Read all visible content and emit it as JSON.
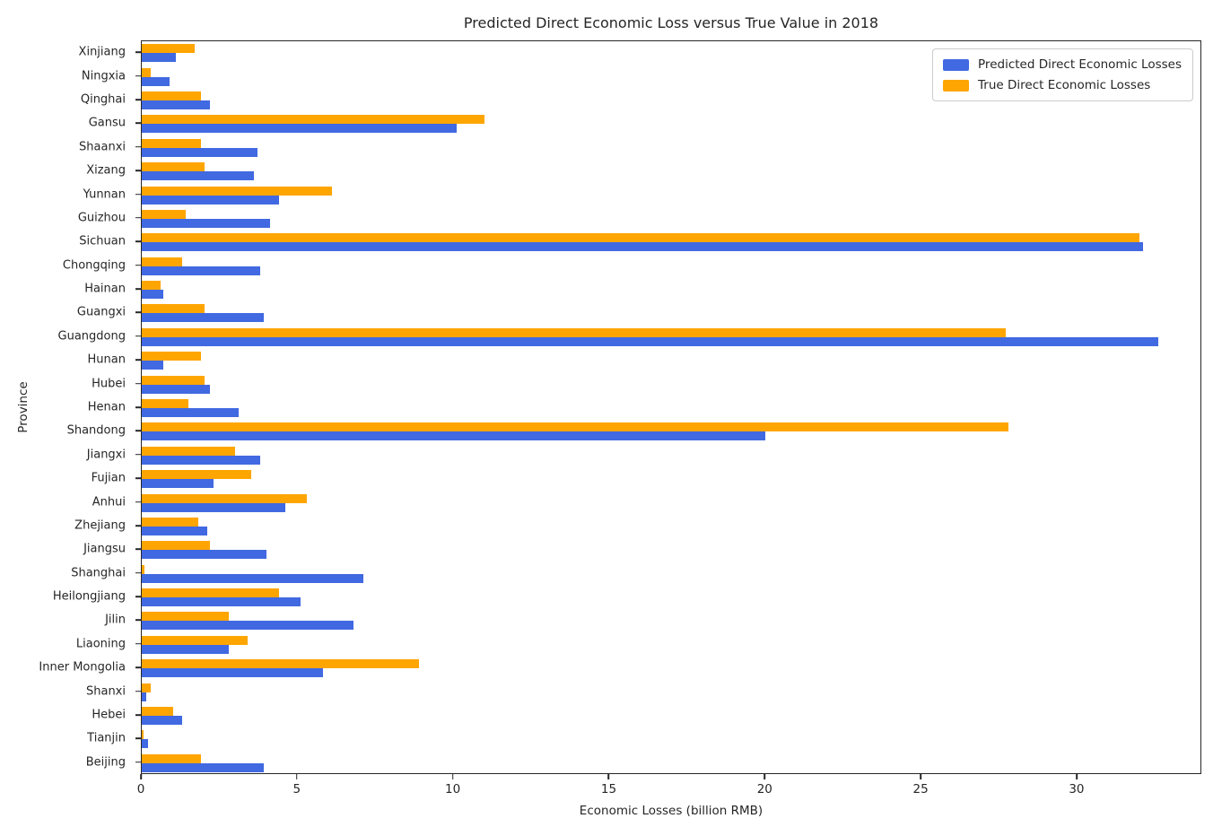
{
  "chart_data": {
    "type": "bar",
    "orientation": "horizontal",
    "title": "Predicted Direct Economic Loss versus True Value in 2018",
    "xlabel": "Economic Losses (billion RMB)",
    "ylabel": "Province",
    "xlim": [
      0,
      34
    ],
    "xticks": [
      0,
      5,
      10,
      15,
      20,
      25,
      30
    ],
    "grid": false,
    "legend_position": "upper right",
    "bar_layout": "orange true-value bar drawn above blue predicted bar in each category group",
    "categories_top_to_bottom": [
      "Xinjiang",
      "Ningxia",
      "Qinghai",
      "Gansu",
      "Shaanxi",
      "Xizang",
      "Yunnan",
      "Guizhou",
      "Sichuan",
      "Chongqing",
      "Hainan",
      "Guangxi",
      "Guangdong",
      "Hunan",
      "Hubei",
      "Henan",
      "Shandong",
      "Jiangxi",
      "Fujian",
      "Anhui",
      "Zhejiang",
      "Jiangsu",
      "Shanghai",
      "Heilongjiang",
      "Jilin",
      "Liaoning",
      "Inner Mongolia",
      "Shanxi",
      "Hebei",
      "Tianjin",
      "Beijing"
    ],
    "series": [
      {
        "name": "Predicted Direct Economic Losses",
        "color": "#4169e1",
        "values": [
          1.1,
          0.9,
          2.2,
          10.1,
          3.7,
          3.6,
          4.4,
          4.1,
          32.1,
          3.8,
          0.7,
          3.9,
          32.6,
          0.7,
          2.2,
          3.1,
          20.0,
          3.8,
          2.3,
          4.6,
          2.1,
          4.0,
          7.1,
          5.1,
          6.8,
          2.8,
          5.8,
          0.15,
          1.3,
          0.2,
          3.9
        ]
      },
      {
        "name": "True Direct Economic Losses",
        "color": "#ffa500",
        "values": [
          1.7,
          0.3,
          1.9,
          11.0,
          1.9,
          2.0,
          6.1,
          1.4,
          32.0,
          1.3,
          0.6,
          2.0,
          27.7,
          1.9,
          2.0,
          1.5,
          27.8,
          3.0,
          3.5,
          5.3,
          1.8,
          2.2,
          0.1,
          4.4,
          2.8,
          3.4,
          8.9,
          0.3,
          1.0,
          0.05,
          1.9
        ]
      }
    ]
  }
}
